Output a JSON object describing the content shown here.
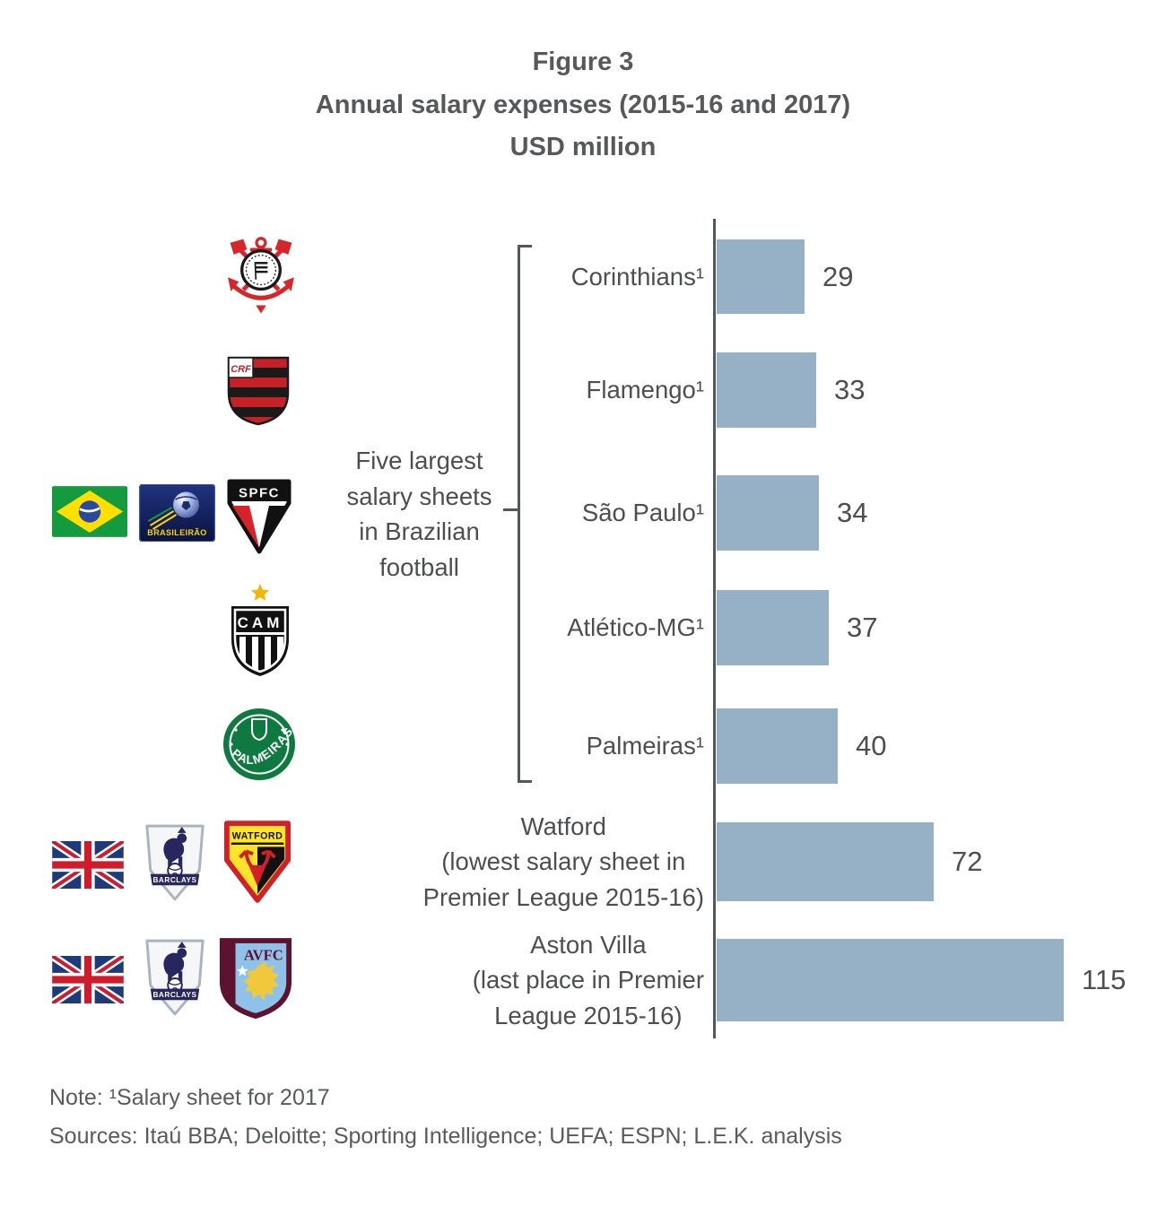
{
  "title": {
    "line1": "Figure 3",
    "line2": "Annual salary expenses (2015-16 and 2017)",
    "line3": "USD million"
  },
  "chart_data": {
    "type": "bar",
    "orientation": "horizontal",
    "title": "Annual salary expenses (2015-16 and 2017)",
    "unit_label": "USD million",
    "categories": [
      "Corinthians¹",
      "Flamengo¹",
      "São Paulo¹",
      "Atlético-MG¹",
      "Palmeiras¹",
      "Watford (lowest salary sheet in Premier League 2015-16)",
      "Aston Villa (last place in Premier League 2015-16)"
    ],
    "values": [
      29,
      33,
      34,
      37,
      40,
      72,
      115
    ],
    "xlim": [
      0,
      115
    ],
    "grid": false,
    "legend": "none",
    "bar_color": "#96b1c6",
    "axis_color": "#53565a"
  },
  "rows": [
    {
      "lines": [
        "Corinthians¹"
      ],
      "value": "29",
      "icons": [
        "corinthians-crest"
      ]
    },
    {
      "lines": [
        "Flamengo¹"
      ],
      "value": "33",
      "icons": [
        "flamengo-crest"
      ]
    },
    {
      "lines": [
        "São Paulo¹"
      ],
      "value": "34",
      "icons": [
        "brazil-flag",
        "brasileirao-logo",
        "sao-paulo-crest"
      ]
    },
    {
      "lines": [
        "Atlético-MG¹"
      ],
      "value": "37",
      "icons": [
        "atletico-mg-crest"
      ]
    },
    {
      "lines": [
        "Palmeiras¹"
      ],
      "value": "40",
      "icons": [
        "palmeiras-crest"
      ]
    },
    {
      "lines": [
        "Watford",
        "(lowest salary sheet in",
        "Premier League 2015-16)"
      ],
      "value": "72",
      "icons": [
        "uk-flag",
        "premier-league-logo",
        "watford-crest"
      ]
    },
    {
      "lines": [
        "Aston Villa",
        "(last place in Premier",
        "League 2015-16)"
      ],
      "value": "115",
      "icons": [
        "uk-flag",
        "premier-league-logo",
        "aston-villa-crest"
      ]
    }
  ],
  "group_annotation": {
    "lines": [
      "Five largest",
      "salary sheets",
      "in Brazilian",
      "football"
    ],
    "applies_to_rows": [
      0,
      1,
      2,
      3,
      4
    ]
  },
  "logo_texts": {
    "flamengo_monogram": "CRF",
    "brasileirao": "BRASILEIRÃO",
    "sao_paulo": "SPFC",
    "atletico_mg": "CAM",
    "palmeiras": "PALMEIRAS",
    "premier_league_band": "BARCLAYS",
    "watford": "WATFORD",
    "aston_villa": "AVFC"
  },
  "footer": {
    "note": "Note: ¹Salary sheet for 2017",
    "sources": "Sources: Itaú BBA; Deloitte; Sporting Intelligence; UEFA; ESPN; L.E.K. analysis"
  },
  "colors": {
    "bar": "#96b1c6",
    "axis": "#53565a",
    "text": "#58595b"
  }
}
